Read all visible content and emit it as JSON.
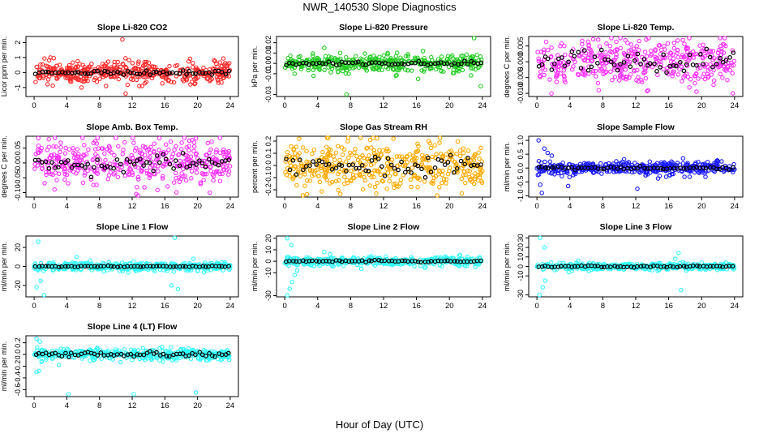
{
  "figure": {
    "title": "NWR_140530  Slope Diagnostics",
    "xlabel": "Hour of Day (UTC)"
  },
  "colors": {
    "red": "#ff2a2a",
    "green": "#22cc22",
    "magenta": "#ff33ff",
    "orange": "#ffaa00",
    "blue": "#1a1aff",
    "cyan": "#33ffff",
    "mean": "#000000"
  },
  "chart_data": [
    {
      "type": "scatter",
      "title": "Slope Li-820 CO2",
      "ylabel": "Licor ppm per min.",
      "color": "red",
      "xlim": [
        -1,
        25
      ],
      "ylim": [
        -1.6,
        2.4
      ],
      "yticks": [
        "-1",
        "0",
        "1",
        "2"
      ],
      "ytick_values": [
        -1,
        0,
        1,
        2
      ],
      "xticks": [
        "0",
        "4",
        "8",
        "12",
        "16",
        "20",
        "24"
      ],
      "xtick_values": [
        0,
        4,
        8,
        12,
        16,
        20,
        24
      ],
      "spread": 0.35,
      "mean_amp": 0.08,
      "outliers": [
        [
          10.8,
          2.2
        ],
        [
          11.2,
          -1.4
        ],
        [
          5.8,
          -1.0
        ],
        [
          2.0,
          1.0
        ],
        [
          8.8,
          -0.9
        ],
        [
          13.2,
          -0.9
        ]
      ]
    },
    {
      "type": "scatter",
      "title": "Slope Li-820 Pressure",
      "ylabel": "kPa per min.",
      "color": "green",
      "xlim": [
        -1,
        25
      ],
      "ylim": [
        -0.032,
        0.026
      ],
      "yticks": [
        "-0.03",
        "-0.01",
        "0.00",
        "0.01",
        "0.02"
      ],
      "ytick_values": [
        -0.03,
        -0.01,
        0,
        0.01,
        0.02
      ],
      "xticks": [
        "0",
        "4",
        "8",
        "12",
        "16",
        "20",
        "24"
      ],
      "xtick_values": [
        0,
        4,
        8,
        12,
        16,
        20,
        24
      ],
      "spread": 0.004,
      "mean_amp": 0.001,
      "outliers": [
        [
          7.5,
          -0.03
        ],
        [
          23,
          0.025
        ],
        [
          23.8,
          -0.022
        ],
        [
          4.8,
          0.015
        ],
        [
          16.2,
          -0.015
        ],
        [
          3.5,
          -0.012
        ],
        [
          12.5,
          0.01
        ],
        [
          13.5,
          -0.012
        ],
        [
          1.2,
          -0.01
        ]
      ]
    },
    {
      "type": "scatter",
      "title": "Slope Li-820 Temp.",
      "ylabel": "degrees C per min.",
      "color": "magenta",
      "xlim": [
        -1,
        25
      ],
      "ylim": [
        -0.011,
        0.008
      ],
      "yticks": [
        "-0.010",
        "-0.005",
        "0.000",
        "0.005"
      ],
      "ytick_values": [
        -0.01,
        -0.005,
        0,
        0.005
      ],
      "xticks": [
        "0",
        "4",
        "8",
        "12",
        "16",
        "20",
        "24"
      ],
      "xtick_values": [
        0,
        4,
        8,
        12,
        16,
        20,
        24
      ],
      "spread": 0.0035,
      "mean_amp": 0.002,
      "outliers": [
        [
          22.8,
          0.0075
        ],
        [
          7.5,
          -0.009
        ],
        [
          13.5,
          -0.009
        ],
        [
          11.0,
          0.006
        ],
        [
          23.8,
          -0.01
        ]
      ]
    },
    {
      "type": "scatter",
      "title": "Slope Amb. Box Temp.",
      "ylabel": "degrees C per min.",
      "color": "magenta",
      "xlim": [
        -1,
        25
      ],
      "ylim": [
        -0.115,
        0.09
      ],
      "yticks": [
        "-0.10",
        "-0.05",
        "0.00",
        "0.05"
      ],
      "ytick_values": [
        -0.1,
        -0.05,
        0,
        0.05
      ],
      "xticks": [
        "0",
        "4",
        "8",
        "12",
        "16",
        "20",
        "24"
      ],
      "xtick_values": [
        0,
        4,
        8,
        12,
        16,
        20,
        24
      ],
      "spread": 0.04,
      "mean_amp": 0.015,
      "outliers": [
        [
          12.5,
          -0.105
        ],
        [
          21.5,
          -0.1
        ],
        [
          1.8,
          0.08
        ],
        [
          19.0,
          0.075
        ]
      ]
    },
    {
      "type": "scatter",
      "title": "Slope Gas Stream RH",
      "ylabel": "percent per min.",
      "color": "orange",
      "xlim": [
        -1,
        25
      ],
      "ylim": [
        -0.26,
        0.24
      ],
      "yticks": [
        "-0.2",
        "-0.1",
        "0.0",
        "0.1",
        "0.2"
      ],
      "ytick_values": [
        -0.2,
        -0.1,
        0,
        0.1,
        0.2
      ],
      "xticks": [
        "0",
        "4",
        "8",
        "12",
        "16",
        "20",
        "24"
      ],
      "xtick_values": [
        0,
        4,
        8,
        12,
        16,
        20,
        24
      ],
      "spread": 0.1,
      "mean_amp": 0.04,
      "outliers": [
        [
          2.2,
          -0.25
        ],
        [
          13.2,
          0.22
        ],
        [
          21.5,
          -0.23
        ],
        [
          17.5,
          0.2
        ]
      ]
    },
    {
      "type": "scatter",
      "title": "Slope Sample Flow",
      "ylabel": "ml/min per min.",
      "color": "blue",
      "xlim": [
        -1,
        25
      ],
      "ylim": [
        -1.05,
        1.15
      ],
      "yticks": [
        "-1.0",
        "-0.5",
        "0.0",
        "0.5",
        "1.0"
      ],
      "ytick_values": [
        -1,
        -0.5,
        0,
        0.5,
        1
      ],
      "xticks": [
        "0",
        "4",
        "8",
        "12",
        "16",
        "20",
        "24"
      ],
      "xtick_values": [
        0,
        4,
        8,
        12,
        16,
        20,
        24
      ],
      "spread": 0.12,
      "mean_amp": 0.03,
      "outliers": [
        [
          0.2,
          1.0
        ],
        [
          0.6,
          -0.9
        ],
        [
          0.9,
          0.7
        ],
        [
          1.3,
          0.55
        ],
        [
          0.4,
          -0.6
        ],
        [
          1.8,
          0.45
        ],
        [
          12.2,
          -0.75
        ],
        [
          3.8,
          -0.65
        ]
      ]
    },
    {
      "type": "scatter",
      "title": "Slope Line 1 Flow",
      "ylabel": "ml/min per min.",
      "color": "cyan",
      "xlim": [
        -1,
        25
      ],
      "ylim": [
        -32,
        32
      ],
      "yticks": [
        "-20",
        "0",
        "20"
      ],
      "ytick_values": [
        -20,
        0,
        20
      ],
      "xticks": [
        "0",
        "4",
        "8",
        "12",
        "16",
        "20",
        "24"
      ],
      "xtick_values": [
        0,
        4,
        8,
        12,
        16,
        20,
        24
      ],
      "spread": 2.2,
      "mean_amp": 0.3,
      "outliers": [
        [
          0.5,
          26
        ],
        [
          0.3,
          -22
        ],
        [
          0.8,
          -15
        ],
        [
          1.2,
          -30
        ],
        [
          17.2,
          30
        ],
        [
          16.8,
          -20
        ],
        [
          17.6,
          -24
        ],
        [
          5.2,
          10
        ],
        [
          19.5,
          8
        ]
      ]
    },
    {
      "type": "scatter",
      "title": "Slope Line 2 Flow",
      "ylabel": "ml/min per min.",
      "color": "cyan",
      "xlim": [
        -1,
        25
      ],
      "ylim": [
        -31,
        22
      ],
      "yticks": [
        "-30",
        "-10",
        "0",
        "10",
        "20"
      ],
      "ytick_values": [
        -30,
        -10,
        0,
        10,
        20
      ],
      "xticks": [
        "0",
        "4",
        "8",
        "12",
        "16",
        "20",
        "24"
      ],
      "xtick_values": [
        0,
        4,
        8,
        12,
        16,
        20,
        24
      ],
      "spread": 1.8,
      "mean_amp": 0.4,
      "outliers": [
        [
          0.3,
          20
        ],
        [
          0.3,
          -30
        ],
        [
          0.6,
          -24
        ],
        [
          0.9,
          -18
        ],
        [
          1.2,
          -12
        ],
        [
          1.5,
          -8
        ],
        [
          0.8,
          14
        ],
        [
          4.8,
          8
        ],
        [
          5.5,
          6
        ]
      ]
    },
    {
      "type": "scatter",
      "title": "Slope Line 3 Flow",
      "ylabel": "ml/min per min.",
      "color": "cyan",
      "xlim": [
        -1,
        25
      ],
      "ylim": [
        -32,
        32
      ],
      "yticks": [
        "-30",
        "-10",
        "0",
        "10",
        "20",
        "30"
      ],
      "ytick_values": [
        -30,
        -10,
        0,
        10,
        20,
        30
      ],
      "xticks": [
        "0",
        "4",
        "8",
        "12",
        "16",
        "20",
        "24"
      ],
      "xtick_values": [
        0,
        4,
        8,
        12,
        16,
        20,
        24
      ],
      "spread": 1.8,
      "mean_amp": 0.4,
      "outliers": [
        [
          0.4,
          30
        ],
        [
          0.3,
          -30
        ],
        [
          0.7,
          -22
        ],
        [
          1.0,
          -15
        ],
        [
          0.9,
          20
        ],
        [
          17.2,
          14
        ],
        [
          17.5,
          -25
        ],
        [
          16.8,
          8
        ],
        [
          5.0,
          6
        ]
      ]
    },
    {
      "type": "scatter",
      "title": "Slope Line 4 (LT) Flow",
      "ylabel": "ml/min per min.",
      "color": "cyan",
      "xlim": [
        -1,
        25
      ],
      "ylim": [
        -0.72,
        0.32
      ],
      "yticks": [
        "-0.6",
        "-0.4",
        "-0.2",
        "0.0",
        "0.2"
      ],
      "ytick_values": [
        -0.6,
        -0.4,
        -0.2,
        0,
        0.2
      ],
      "xticks": [
        "0",
        "4",
        "8",
        "12",
        "16",
        "20",
        "24"
      ],
      "xtick_values": [
        0,
        4,
        8,
        12,
        16,
        20,
        24
      ],
      "spread": 0.045,
      "mean_amp": 0.02,
      "outliers": [
        [
          0.3,
          0.27
        ],
        [
          0.7,
          0.22
        ],
        [
          0.3,
          -0.3
        ],
        [
          0.6,
          -0.28
        ],
        [
          4.2,
          -0.68
        ],
        [
          12.2,
          -0.68
        ],
        [
          19.8,
          -0.65
        ]
      ]
    }
  ]
}
